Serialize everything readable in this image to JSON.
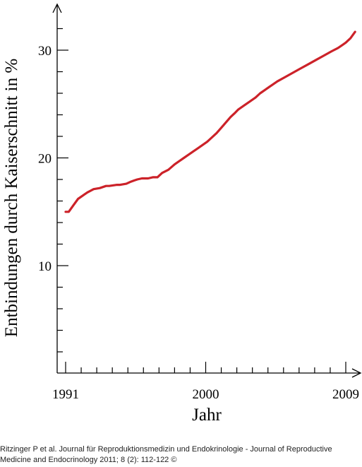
{
  "chart_data": {
    "type": "line",
    "title": "",
    "xlabel": "Jahr",
    "ylabel": "Entbindungen durch Kaiserschnitt in %",
    "xlim": [
      1991,
      2009
    ],
    "ylim": [
      0,
      35
    ],
    "x_tick_labels": [
      "1991",
      "2000",
      "2009"
    ],
    "y_tick_labels": [
      "10",
      "20",
      "30"
    ],
    "grid": false,
    "color": "#cc2229",
    "series": [
      {
        "x": [
          1991.0,
          1991.2,
          1991.5,
          1991.8,
          1992.2,
          1992.4,
          1992.8,
          1993.2,
          1993.6,
          1993.8,
          1994.3,
          1994.5,
          1994.9,
          1995.2,
          1995.4,
          1995.6,
          1995.9,
          1996.3,
          1996.6,
          1996.9,
          1997.2,
          1997.6,
          1998.0,
          1998.3,
          1998.6,
          1998.9,
          1999.2,
          1999.5,
          1999.8,
          2000.1,
          2000.4,
          2000.7,
          2001.0,
          2001.3,
          2001.6,
          2001.9,
          2002.1,
          2002.4,
          2002.8,
          2003.2,
          2003.5,
          2003.6,
          2003.8,
          2004.2,
          2004.6,
          2005.1,
          2005.6,
          2006.1,
          2006.6,
          2007.1,
          2007.6,
          2008.1,
          2008.5,
          2008.8,
          2009.0,
          2009.3,
          2009.6
        ],
        "y": [
          15.0,
          15.0,
          15.6,
          16.2,
          16.6,
          16.8,
          17.1,
          17.2,
          17.4,
          17.4,
          17.5,
          17.5,
          17.6,
          17.8,
          17.9,
          18.0,
          18.1,
          18.1,
          18.2,
          18.2,
          18.6,
          18.9,
          19.4,
          19.7,
          20.0,
          20.3,
          20.6,
          20.9,
          21.2,
          21.5,
          21.9,
          22.3,
          22.8,
          23.3,
          23.8,
          24.2,
          24.5,
          24.8,
          25.2,
          25.6,
          26.0,
          26.1,
          26.3,
          26.7,
          27.1,
          27.5,
          27.9,
          28.3,
          28.7,
          29.1,
          29.5,
          29.9,
          30.2,
          30.5,
          30.7,
          31.1,
          31.7
        ]
      }
    ]
  },
  "citation": "Ritzinger P et al. Journal für Reproduktionsmedizin und Endokrinologie - Journal of Reproductive Medicine and Endocrinology 2011; 8 (2): 112-122 ©"
}
